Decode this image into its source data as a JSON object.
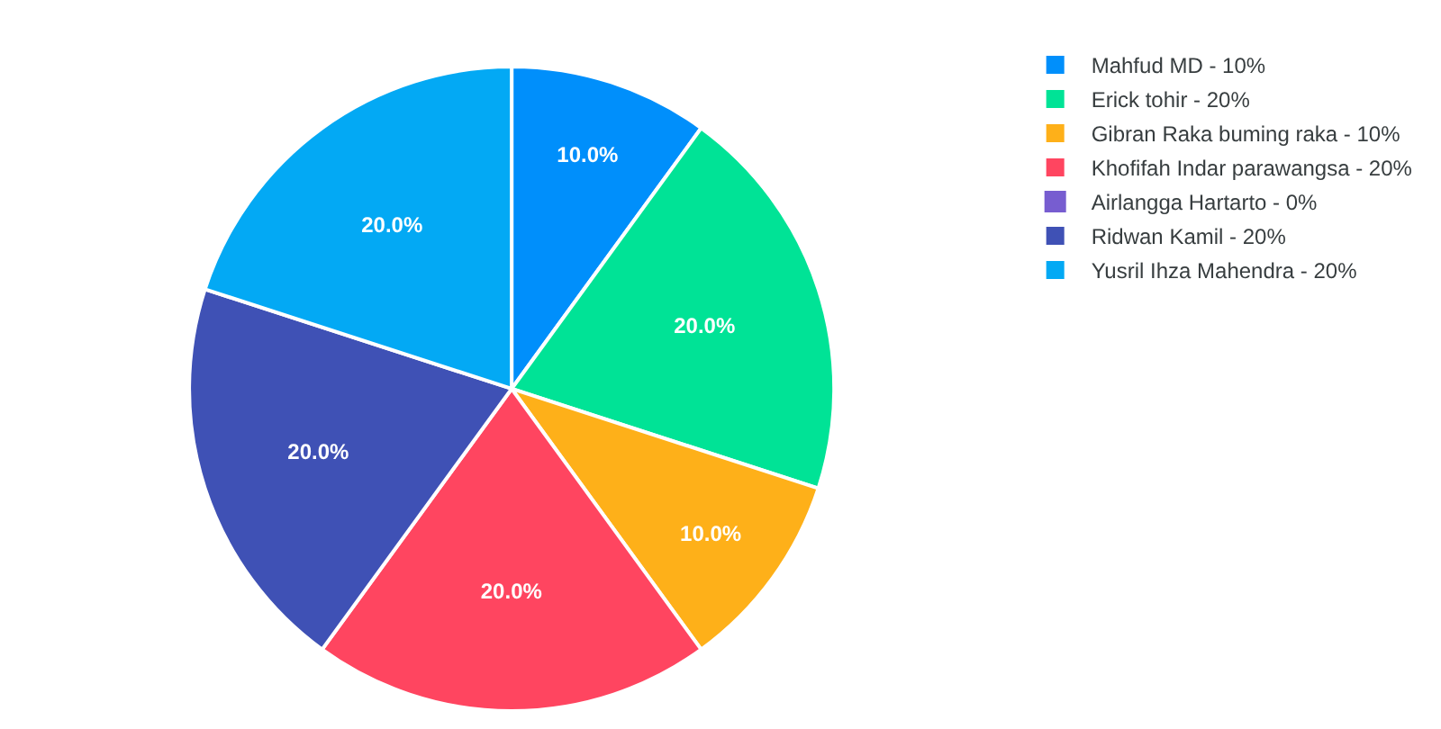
{
  "chart_data": {
    "type": "pie",
    "categories": [
      "Mahfud MD - 10%",
      "Erick tohir - 20%",
      "Gibran Raka buming raka - 10%",
      "Khofifah Indar parawangsa - 20%",
      "Airlangga Hartarto - 0%",
      "Ridwan Kamil - 20%",
      "Yusril Ihza Mahendra - 20%"
    ],
    "values": [
      10,
      20,
      10,
      20,
      0,
      20,
      20
    ],
    "colors": [
      "#008ffb",
      "#00e396",
      "#feb019",
      "#ff4560",
      "#775dd0",
      "#3f51b5",
      "#03a9f4"
    ],
    "value_labels": [
      "10.0%",
      "20.0%",
      "10.0%",
      "20.0%",
      null,
      "20.0%",
      "20.0%"
    ],
    "legend": "top right"
  }
}
